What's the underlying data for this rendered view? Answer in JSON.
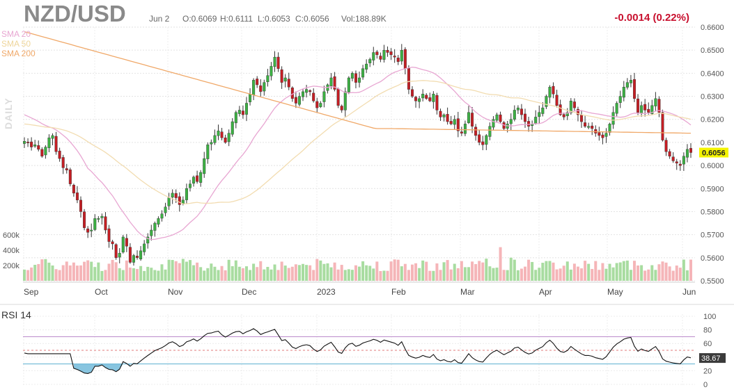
{
  "header": {
    "symbol": "NZD/USD",
    "date": "Jun 2",
    "open": "O:0.6069",
    "high": "H:0.6111",
    "low": "L:0.6053",
    "close": "C:0.6056",
    "volume": "Vol:188.89K",
    "change": "-0.0014 (0.22%)"
  },
  "sma_legend": [
    {
      "label": "SMA 20",
      "color": "#e8a6d2"
    },
    {
      "label": "SMA 50",
      "color": "#f2d9a6"
    },
    {
      "label": "SMA 200",
      "color": "#f0a868"
    }
  ],
  "interval_label": "DAILY",
  "rsi_label": "RSI 14",
  "colors": {
    "up": "#3cb043",
    "down": "#c41e24",
    "up_volume": "#a8dca0",
    "down_volume": "#f5b5b8",
    "last_price_badge": "#f4f400",
    "rsi_badge": "#3b3b3b"
  },
  "chart_data": {
    "type": "candlestick",
    "price_axis": {
      "range": [
        0.55,
        0.66
      ],
      "ticks": [
        "0.6600",
        "0.6500",
        "0.6400",
        "0.6300",
        "0.6200",
        "0.6100",
        "0.6000",
        "0.5900",
        "0.5800",
        "0.5700",
        "0.5600",
        "0.5500"
      ]
    },
    "volume_axis": {
      "ticks": [
        "600k",
        "400k",
        "200k"
      ]
    },
    "x_labels": [
      "Sep",
      "Oct",
      "Nov",
      "Dec",
      "2023",
      "Feb",
      "Mar",
      "Apr",
      "May",
      "Jun"
    ],
    "last_price": "0.6056",
    "close_series": [
      0.6105,
      0.6098,
      0.608,
      0.609,
      0.607,
      0.604,
      0.608,
      0.612,
      0.613,
      0.606,
      0.603,
      0.599,
      0.598,
      0.592,
      0.588,
      0.585,
      0.58,
      0.573,
      0.571,
      0.572,
      0.577,
      0.577,
      0.578,
      0.572,
      0.567,
      0.566,
      0.56,
      0.562,
      0.569,
      0.565,
      0.558,
      0.561,
      0.56,
      0.563,
      0.566,
      0.569,
      0.572,
      0.575,
      0.577,
      0.579,
      0.582,
      0.586,
      0.588,
      0.586,
      0.583,
      0.585,
      0.59,
      0.592,
      0.595,
      0.593,
      0.597,
      0.603,
      0.609,
      0.61,
      0.613,
      0.615,
      0.612,
      0.61,
      0.614,
      0.619,
      0.623,
      0.624,
      0.622,
      0.627,
      0.631,
      0.637,
      0.635,
      0.632,
      0.636,
      0.639,
      0.643,
      0.647,
      0.642,
      0.636,
      0.638,
      0.634,
      0.629,
      0.627,
      0.63,
      0.632,
      0.633,
      0.632,
      0.628,
      0.625,
      0.627,
      0.632,
      0.635,
      0.638,
      0.633,
      0.626,
      0.624,
      0.632,
      0.638,
      0.64,
      0.636,
      0.638,
      0.642,
      0.644,
      0.646,
      0.649,
      0.648,
      0.646,
      0.65,
      0.649,
      0.648,
      0.647,
      0.645,
      0.65,
      0.642,
      0.633,
      0.63,
      0.628,
      0.629,
      0.631,
      0.629,
      0.628,
      0.631,
      0.624,
      0.621,
      0.622,
      0.619,
      0.618,
      0.62,
      0.615,
      0.614,
      0.618,
      0.623,
      0.617,
      0.613,
      0.61,
      0.609,
      0.613,
      0.617,
      0.62,
      0.622,
      0.619,
      0.616,
      0.618,
      0.62,
      0.624,
      0.625,
      0.622,
      0.619,
      0.617,
      0.618,
      0.621,
      0.623,
      0.625,
      0.63,
      0.634,
      0.631,
      0.626,
      0.622,
      0.621,
      0.623,
      0.628,
      0.625,
      0.622,
      0.619,
      0.617,
      0.617,
      0.616,
      0.614,
      0.613,
      0.612,
      0.614,
      0.618,
      0.623,
      0.627,
      0.63,
      0.634,
      0.636,
      0.637,
      0.629,
      0.623,
      0.626,
      0.624,
      0.623,
      0.626,
      0.629,
      0.623,
      0.611,
      0.606,
      0.604,
      0.602,
      0.601,
      0.6,
      0.604,
      0.607,
      0.6056
    ],
    "rsi": {
      "axis_ticks": [
        "100",
        "80",
        "60",
        "40",
        "20",
        "0"
      ],
      "levels": [
        70,
        50,
        30
      ],
      "last": "38.67"
    }
  }
}
